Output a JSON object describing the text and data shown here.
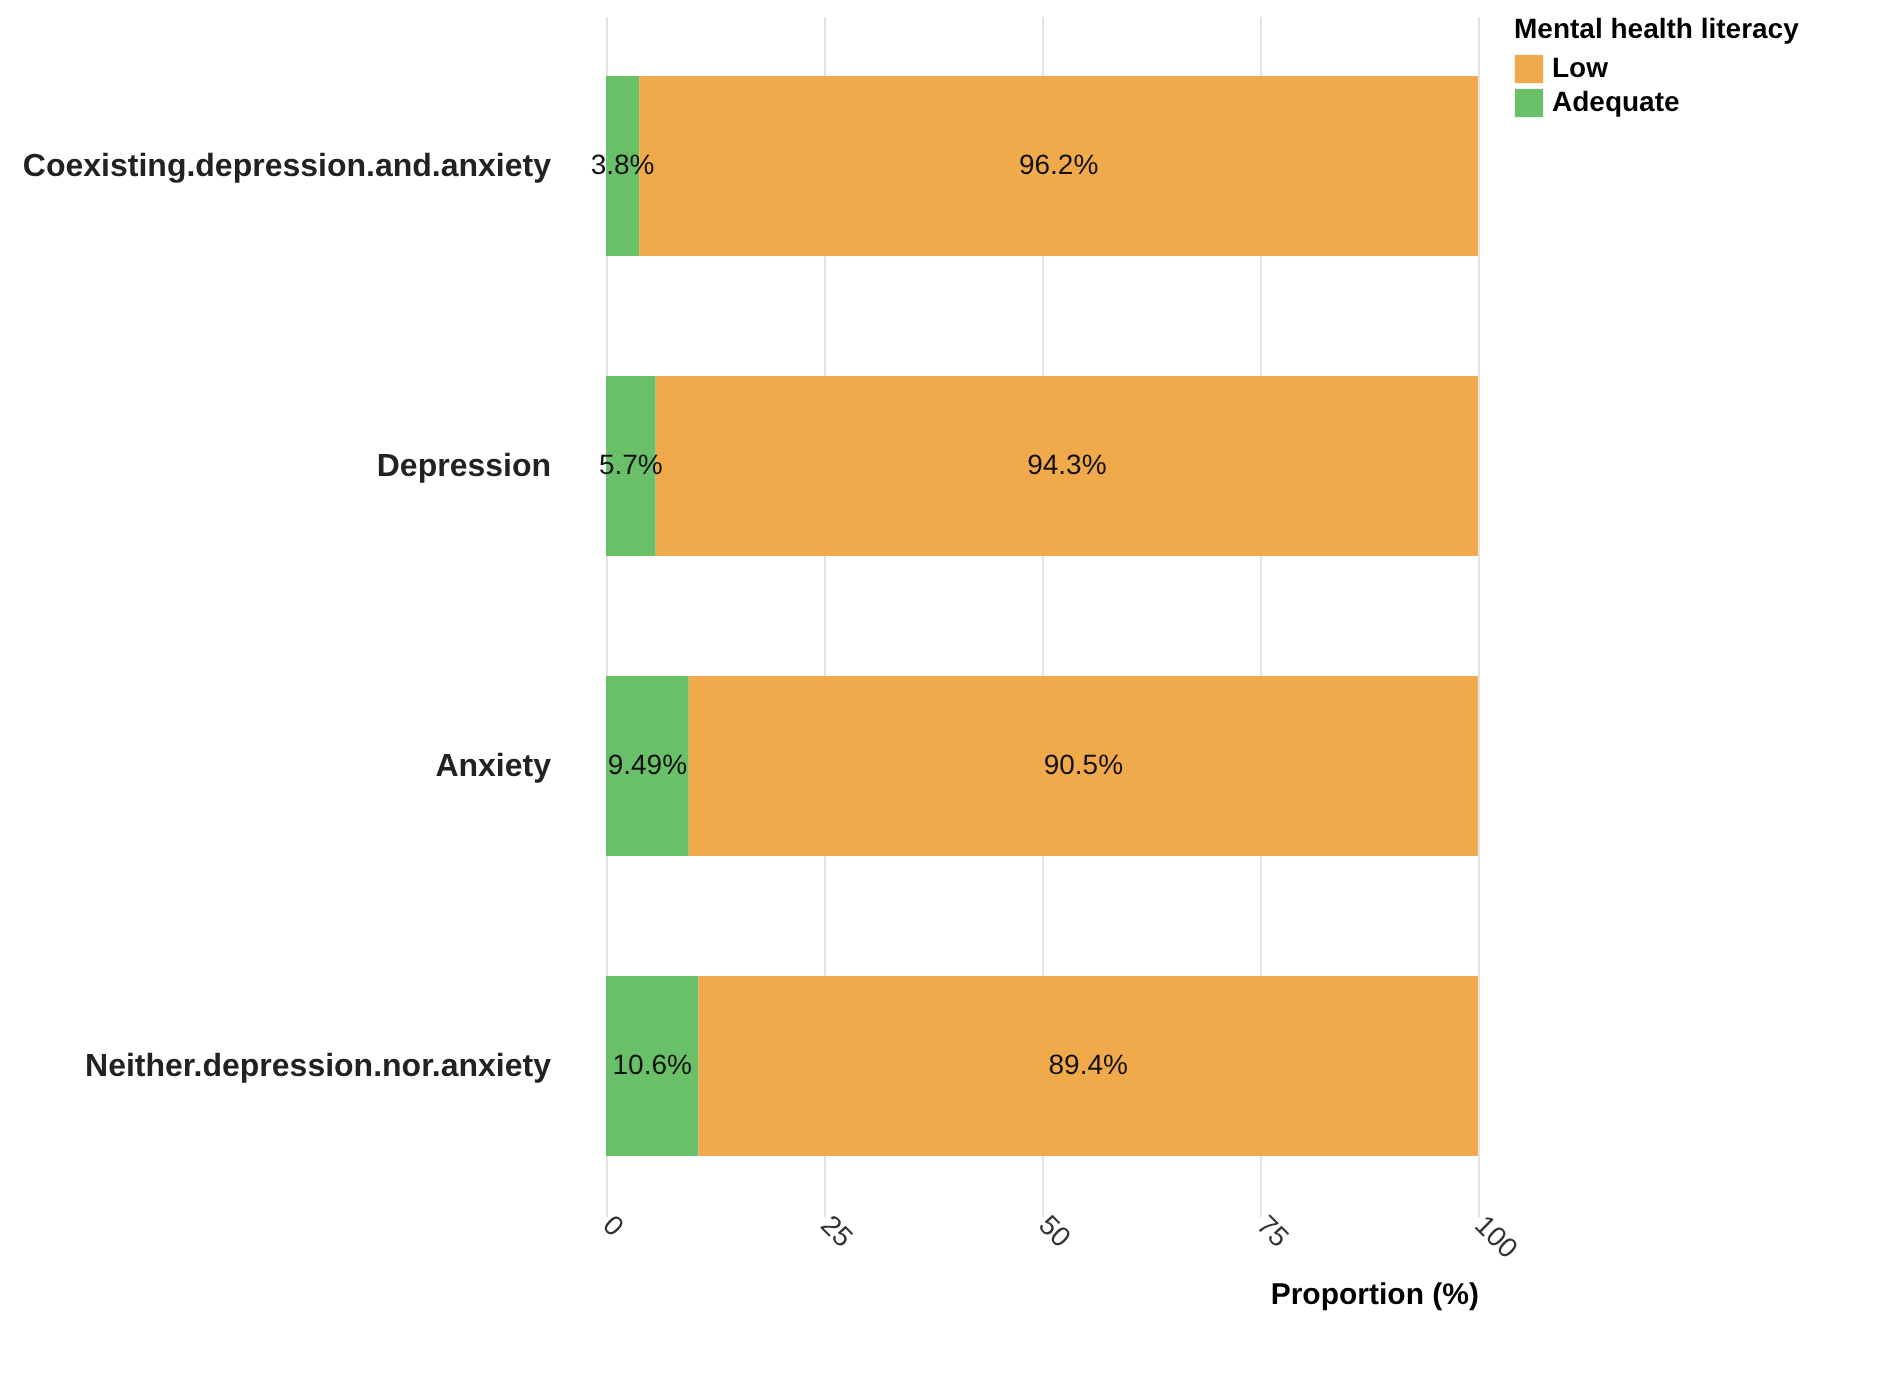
{
  "chart_data": {
    "type": "bar",
    "orientation": "horizontal",
    "stacked": true,
    "xlabel": "Proportion (%)",
    "legend_title": "Mental health literacy",
    "legend": "right",
    "grid": "x",
    "categories": [
      "Coexisting.depression.and.anxiety",
      "Depression",
      "Anxiety",
      "Neither.depression.nor.anxiety"
    ],
    "series": [
      {
        "name": "Adequate",
        "color": "#6abf69",
        "values": [
          3.8,
          5.7,
          9.49,
          10.6
        ],
        "value_labels": [
          "3.8%",
          "5.7%",
          "9.49%",
          "10.6%"
        ]
      },
      {
        "name": "Low",
        "color": "#f0a94b",
        "values": [
          96.2,
          94.3,
          90.5,
          89.4
        ],
        "value_labels": [
          "96.2%",
          "94.3%",
          "90.5%",
          "89.4%"
        ]
      }
    ],
    "xlim": [
      0,
      100
    ],
    "xticks": [
      0,
      25,
      50,
      75,
      100
    ]
  }
}
